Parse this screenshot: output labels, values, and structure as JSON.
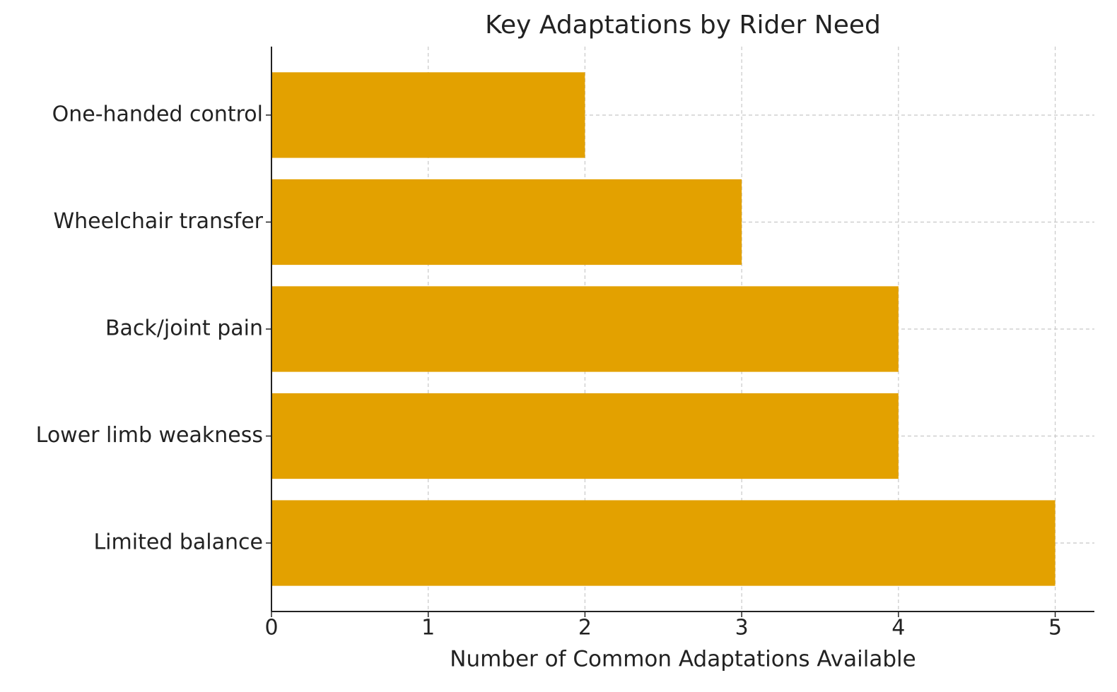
{
  "chart_data": {
    "type": "barh",
    "title": "Key Adaptations by Rider Need",
    "x_label": "Number of Common Adaptations Available",
    "categories": [
      "One-handed control",
      "Wheelchair transfer",
      "Back/joint pain",
      "Lower limb weakness",
      "Limited balance"
    ],
    "values": [
      2,
      3,
      4,
      4,
      5
    ],
    "color": "#e3a100",
    "xlim": [
      0,
      5.25
    ],
    "xticks": [
      0,
      1,
      2,
      3,
      4,
      5
    ],
    "grid": true
  }
}
